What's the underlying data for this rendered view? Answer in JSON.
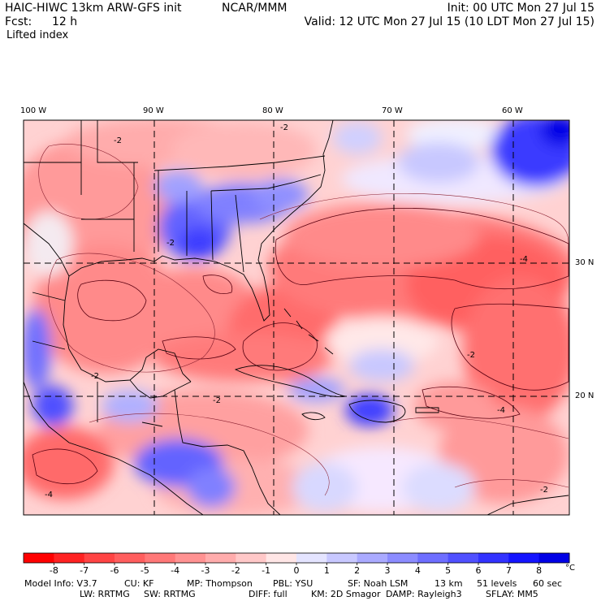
{
  "header": {
    "model_title": "HAIC-HIWC 13km ARW-GFS init",
    "org": "NCAR/MMM",
    "init": "Init: 00 UTC Mon 27 Jul 15",
    "fcst_label": "Fcst:",
    "fcst_value": "12 h",
    "valid": "Valid: 12 UTC Mon 27 Jul 15 (10 LDT Mon 27 Jul 15)",
    "field": "Lifted index"
  },
  "map": {
    "lon_labels": [
      "100 W",
      "90 W",
      "80 W",
      "70 W",
      "60 W"
    ],
    "lat_labels": [
      "30 N",
      "20 N"
    ],
    "contour_labels": [
      "-2",
      "-2",
      "-2",
      "-4",
      "-2",
      "-2",
      "-4",
      "-4",
      "-2",
      "-2"
    ],
    "colors": {
      "land_line": "#000000",
      "contour": "#5a0010",
      "grid": "#000000"
    }
  },
  "colorbar": {
    "labels": [
      "-8",
      "-7",
      "-6",
      "-5",
      "-4",
      "-3",
      "-2",
      "-1",
      "0",
      "1",
      "2",
      "3",
      "4",
      "5",
      "6",
      "7",
      "8"
    ],
    "unit": "°C",
    "colors": [
      "#ff0000",
      "#ff2222",
      "#ff4444",
      "#ff5e5e",
      "#ff7878",
      "#ff9292",
      "#ffacac",
      "#ffc8c8",
      "#ffe6e6",
      "#e4e4ff",
      "#c8c8ff",
      "#aaaaff",
      "#8c8cff",
      "#6e6eff",
      "#5050ff",
      "#3232ff",
      "#1414ff",
      "#0000e6"
    ]
  },
  "footer": {
    "line1": [
      "Model Info: V3.7",
      "CU: KF",
      "MP: Thompson",
      "PBL: YSU",
      "SF: Noah LSM",
      "13 km",
      "51 levels",
      "60 sec"
    ],
    "line2": [
      "LW: RRTMG",
      "SW: RRTMG",
      "DIFF: full",
      "KM: 2D Smagor",
      "DAMP: Rayleigh3",
      "SFLAY: MM5"
    ]
  }
}
